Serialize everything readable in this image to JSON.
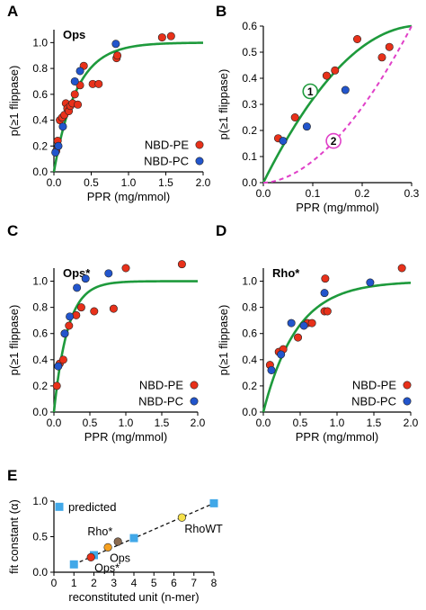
{
  "chart_data": [
    {
      "panel": "A",
      "type": "scatter",
      "inset_label": "Ops",
      "xlabel": "PPR (mg/mmol)",
      "ylabel": "p(≥1 flippase)",
      "xlim": [
        0,
        2.0
      ],
      "ylim": [
        0,
        1.1
      ],
      "xticks": [
        "0.0",
        "0.5",
        "1.0",
        "1.5",
        "2.0"
      ],
      "yticks": [
        "0.0",
        "0.2",
        "0.4",
        "0.6",
        "0.8",
        "1.0"
      ],
      "legend": "bottom-right",
      "curves": [
        {
          "color": "#1e9a3c",
          "dashed": false,
          "k": 3.3
        }
      ],
      "series": [
        {
          "name": "NBD-PE",
          "color": "#e8311a",
          "points": [
            [
              0.03,
              0.16
            ],
            [
              0.05,
              0.24
            ],
            [
              0.08,
              0.4
            ],
            [
              0.11,
              0.42
            ],
            [
              0.14,
              0.44
            ],
            [
              0.16,
              0.53
            ],
            [
              0.18,
              0.49
            ],
            [
              0.2,
              0.47
            ],
            [
              0.22,
              0.51
            ],
            [
              0.25,
              0.53
            ],
            [
              0.28,
              0.6
            ],
            [
              0.32,
              0.52
            ],
            [
              0.35,
              0.67
            ],
            [
              0.4,
              0.82
            ],
            [
              0.52,
              0.68
            ],
            [
              0.6,
              0.68
            ],
            [
              0.84,
              0.88
            ],
            [
              0.85,
              0.9
            ],
            [
              1.45,
              1.04
            ],
            [
              1.57,
              1.05
            ]
          ]
        },
        {
          "name": "NBD-PC",
          "color": "#2255cc",
          "points": [
            [
              0.02,
              0.15
            ],
            [
              0.06,
              0.2
            ],
            [
              0.12,
              0.35
            ],
            [
              0.28,
              0.7
            ],
            [
              0.35,
              0.78
            ],
            [
              0.83,
              0.99
            ]
          ]
        }
      ]
    },
    {
      "panel": "B",
      "type": "scatter",
      "xlabel": "PPR (mg/mmol)",
      "ylabel": "p(≥1 flippase)",
      "xlim": [
        0,
        0.3
      ],
      "ylim": [
        0,
        0.6
      ],
      "xticks": [
        "0.0",
        "0.1",
        "0.2",
        "0.3"
      ],
      "yticks": [
        "0.0",
        "0.1",
        "0.2",
        "0.3",
        "0.4",
        "0.5",
        "0.6"
      ],
      "curve_labels": [
        {
          "text": "1",
          "color": "#1e9a3c",
          "x": 0.095,
          "y": 0.35
        },
        {
          "text": "2",
          "color": "#e040c8",
          "x": 0.142,
          "y": 0.16
        }
      ],
      "curves": [
        {
          "color": "#1e9a3c",
          "dashed": false,
          "model": "concave"
        },
        {
          "color": "#e040c8",
          "dashed": true,
          "model": "convex"
        }
      ],
      "series": [
        {
          "name": "NBD-PE",
          "color": "#e8311a",
          "points": [
            [
              0.03,
              0.17
            ],
            [
              0.064,
              0.25
            ],
            [
              0.128,
              0.41
            ],
            [
              0.145,
              0.43
            ],
            [
              0.19,
              0.55
            ],
            [
              0.24,
              0.48
            ],
            [
              0.255,
              0.52
            ]
          ]
        },
        {
          "name": "NBD-PC",
          "color": "#2255cc",
          "points": [
            [
              0.04,
              0.16
            ],
            [
              0.088,
              0.215
            ],
            [
              0.166,
              0.355
            ]
          ]
        }
      ]
    },
    {
      "panel": "C",
      "type": "scatter",
      "inset_label": "Ops*",
      "xlabel": "PPR (mg/mmol)",
      "ylabel": "p(≥1 flippase)",
      "xlim": [
        0,
        2.0
      ],
      "ylim": [
        0,
        1.1
      ],
      "xticks": [
        "0.0",
        "0.5",
        "1.0",
        "1.5",
        "2.0"
      ],
      "yticks": [
        "0.0",
        "0.2",
        "0.4",
        "0.6",
        "0.8",
        "1.0"
      ],
      "legend": "bottom-right",
      "curves": [
        {
          "color": "#1e9a3c",
          "dashed": false,
          "k": 5.2
        }
      ],
      "series": [
        {
          "name": "NBD-PE",
          "color": "#e8311a",
          "points": [
            [
              0.04,
              0.2
            ],
            [
              0.08,
              0.37
            ],
            [
              0.13,
              0.4
            ],
            [
              0.15,
              0.6
            ],
            [
              0.21,
              0.66
            ],
            [
              0.31,
              0.74
            ],
            [
              0.38,
              0.8
            ],
            [
              0.56,
              0.77
            ],
            [
              0.83,
              0.79
            ],
            [
              1.0,
              1.1
            ],
            [
              1.78,
              1.13
            ]
          ]
        },
        {
          "name": "NBD-PC",
          "color": "#2255cc",
          "points": [
            [
              0.06,
              0.35
            ],
            [
              0.15,
              0.6
            ],
            [
              0.22,
              0.73
            ],
            [
              0.32,
              0.95
            ],
            [
              0.44,
              1.02
            ],
            [
              0.76,
              1.06
            ]
          ]
        }
      ]
    },
    {
      "panel": "D",
      "type": "scatter",
      "inset_label": "Rho*",
      "xlabel": "PPR (mg/mmol)",
      "ylabel": "p(≥1 flippase)",
      "xlim": [
        0,
        2.0
      ],
      "ylim": [
        0,
        1.1
      ],
      "xticks": [
        "0.0",
        "0.5",
        "1.0",
        "1.5",
        "2.0"
      ],
      "yticks": [
        "0.0",
        "0.2",
        "0.4",
        "0.6",
        "0.8",
        "1.0"
      ],
      "legend": "bottom-right",
      "curves": [
        {
          "color": "#1e9a3c",
          "dashed": false,
          "k": 2.2
        }
      ],
      "series": [
        {
          "name": "NBD-PE",
          "color": "#e8311a",
          "points": [
            [
              0.09,
              0.36
            ],
            [
              0.21,
              0.46
            ],
            [
              0.27,
              0.48
            ],
            [
              0.47,
              0.57
            ],
            [
              0.6,
              0.68
            ],
            [
              0.66,
              0.68
            ],
            [
              0.83,
              0.77
            ],
            [
              0.87,
              0.77
            ],
            [
              0.84,
              1.02
            ],
            [
              1.88,
              1.1
            ]
          ]
        },
        {
          "name": "NBD-PC",
          "color": "#2255cc",
          "points": [
            [
              0.11,
              0.32
            ],
            [
              0.24,
              0.44
            ],
            [
              0.38,
              0.68
            ],
            [
              0.55,
              0.66
            ],
            [
              0.83,
              0.91
            ],
            [
              1.45,
              0.99
            ]
          ]
        }
      ]
    },
    {
      "panel": "E",
      "type": "scatter",
      "xlabel": "reconstituted unit (n-mer)",
      "ylabel": "fit constant (α)",
      "xlim": [
        0,
        8
      ],
      "ylim": [
        0,
        1.0
      ],
      "xticks": [
        "0",
        "1",
        "2",
        "3",
        "4",
        "5",
        "6",
        "7",
        "8"
      ],
      "yticks": [
        "0.0",
        "0.5",
        "1.0"
      ],
      "legend": "top-left",
      "predicted": {
        "name": "predicted",
        "color": "#41a8e8",
        "points": [
          [
            1,
            0.11
          ],
          [
            2,
            0.24
          ],
          [
            4,
            0.48
          ],
          [
            8,
            0.97
          ]
        ]
      },
      "measured": [
        {
          "label": "Ops*",
          "color": "#e8311a",
          "x": 1.85,
          "y": 0.21
        },
        {
          "label": "Ops",
          "color": "#f5a020",
          "x": 2.7,
          "y": 0.35
        },
        {
          "label": "Rho*",
          "color": "#8a6a50",
          "x": 3.2,
          "y": 0.43
        },
        {
          "label": "RhoWT",
          "color": "#f5e04a",
          "x": 6.4,
          "y": 0.77
        }
      ]
    }
  ]
}
